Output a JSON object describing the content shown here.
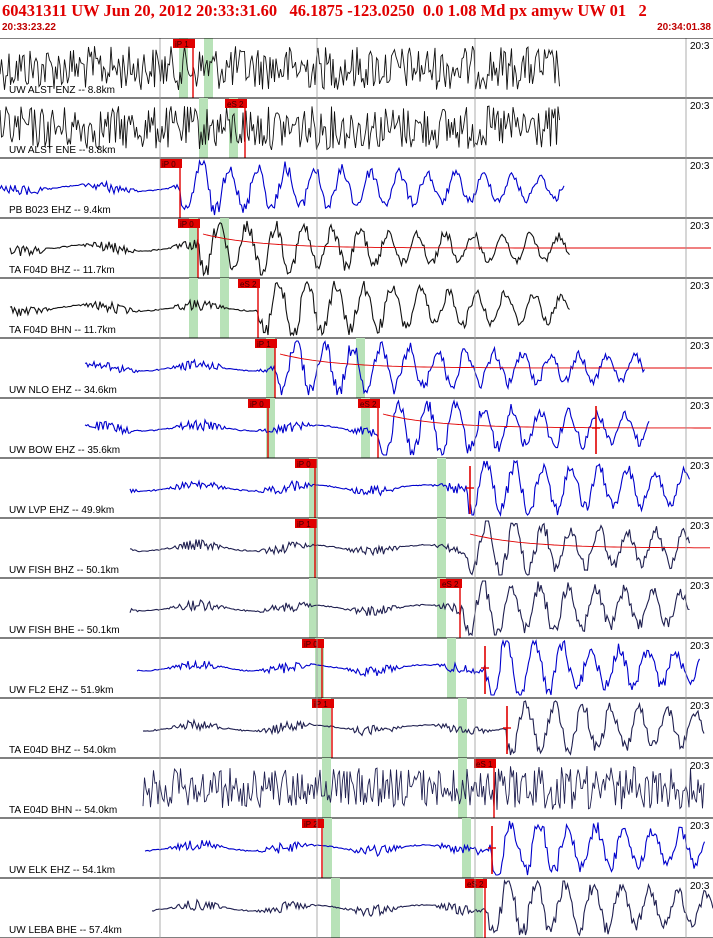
{
  "header": {
    "title": "60431311 UW Jun 20, 2012 20:33:31.60   46.1875 -123.0250  0.0 1.08 Md px amyw UW 01   2",
    "start_time": "20:33:23.22",
    "end_time": "20:34:01.38"
  },
  "colors": {
    "pick_red": "#e00000",
    "trace_black": "#111111",
    "trace_blue": "#0000cc",
    "trace_navy": "#202050",
    "window_green": "#b8e2b8",
    "grid_gray": "#9a9a9a"
  },
  "traces": [
    {
      "label": "UW ALST ENZ -- 8.8km",
      "time_label": "20:3",
      "style": "black",
      "noise": true,
      "picks": [
        {
          "label": "iP 1",
          "x": 193
        }
      ],
      "greens": [
        183,
        208
      ],
      "start": 0,
      "end": 560
    },
    {
      "label": "UW ALST ENE -- 8.8km",
      "time_label": "20:3",
      "style": "black",
      "noise": true,
      "picks": [
        {
          "label": "eS 2",
          "x": 245
        }
      ],
      "greens": [
        203,
        233
      ],
      "start": 0,
      "end": 560
    },
    {
      "label": "PB B023 EHZ -- 9.4km",
      "time_label": "20:3",
      "style": "blue",
      "picks": [
        {
          "label": "iP 0",
          "x": 180
        }
      ],
      "greens": [],
      "start": 0,
      "end": 565,
      "onset": 180
    },
    {
      "label": "TA F04D BHZ -- 11.7km",
      "time_label": "20:3",
      "style": "black",
      "picks": [
        {
          "label": "iP 0",
          "x": 198
        }
      ],
      "greens": [
        193,
        224
      ],
      "start": 10,
      "end": 570,
      "onset": 198,
      "coda": true
    },
    {
      "label": "TA F04D BHN -- 11.7km",
      "time_label": "20:3",
      "style": "black",
      "picks": [
        {
          "label": "eS 2",
          "x": 258
        }
      ],
      "greens": [
        193,
        224
      ],
      "start": 10,
      "end": 570,
      "onset": 258
    },
    {
      "label": "UW NLO EHZ -- 34.6km",
      "time_label": "20:3",
      "style": "blue",
      "picks": [
        {
          "label": "iP 1",
          "x": 275
        }
      ],
      "greens": [
        270,
        360
      ],
      "start": 85,
      "end": 645,
      "onset": 275,
      "coda": true
    },
    {
      "label": "UW BOW EHZ -- 35.6km",
      "time_label": "20:3",
      "style": "blue",
      "picks": [
        {
          "label": "iP 0",
          "x": 268
        },
        {
          "label": "eS 2",
          "x": 378
        }
      ],
      "greens": [
        270,
        365
      ],
      "start": 85,
      "end": 650,
      "onset": 378,
      "coda": true,
      "mark": 596
    },
    {
      "label": "UW LVP EHZ -- 49.9km",
      "time_label": "20:3",
      "style": "blue",
      "picks": [
        {
          "label": "iP 0",
          "x": 315
        }
      ],
      "greens": [
        313,
        441
      ],
      "start": 130,
      "end": 690,
      "onset": 465,
      "mark": 470
    },
    {
      "label": "UW FISH BHZ -- 50.1km",
      "time_label": "20:3",
      "style": "navy",
      "picks": [
        {
          "label": "iP 1",
          "x": 315
        }
      ],
      "greens": [
        313,
        441
      ],
      "start": 130,
      "end": 690,
      "onset": 465,
      "coda": true
    },
    {
      "label": "UW FISH BHE -- 50.1km",
      "time_label": "20:3",
      "style": "navy",
      "picks": [
        {
          "label": "eS 2",
          "x": 460
        }
      ],
      "greens": [
        313,
        441
      ],
      "start": 130,
      "end": 690,
      "onset": 462
    },
    {
      "label": "UW FL2 EHZ -- 51.9km",
      "time_label": "20:3",
      "style": "blue",
      "picks": [
        {
          "label": "iP 0",
          "x": 322
        }
      ],
      "greens": [
        319,
        451
      ],
      "start": 137,
      "end": 700,
      "onset": 485,
      "mark": 485
    },
    {
      "label": "TA E04D BHZ -- 54.0km",
      "time_label": "20:3",
      "style": "navy",
      "picks": [
        {
          "label": "iP 1",
          "x": 332
        }
      ],
      "greens": [
        326,
        462
      ],
      "start": 143,
      "end": 705,
      "onset": 505,
      "mark": 507
    },
    {
      "label": "TA E04D BHN -- 54.0km",
      "time_label": "20:3",
      "style": "navy",
      "noise": true,
      "picks": [
        {
          "label": "eS 1",
          "x": 494
        }
      ],
      "greens": [
        326,
        462
      ],
      "start": 143,
      "end": 705,
      "onset": 494
    },
    {
      "label": "UW ELK EHZ -- 54.1km",
      "time_label": "20:3",
      "style": "blue",
      "picks": [
        {
          "label": "iP 2",
          "x": 322
        }
      ],
      "greens": [
        327,
        466
      ],
      "start": 145,
      "end": 705,
      "onset": 490,
      "mark": 492
    },
    {
      "label": "UW LEBA BHE -- 57.4km",
      "time_label": "20:3",
      "style": "navy",
      "picks": [
        {
          "label": "eS 2",
          "x": 485
        }
      ],
      "greens": [
        335,
        478
      ],
      "start": 152,
      "end": 713,
      "onset": 487
    }
  ]
}
